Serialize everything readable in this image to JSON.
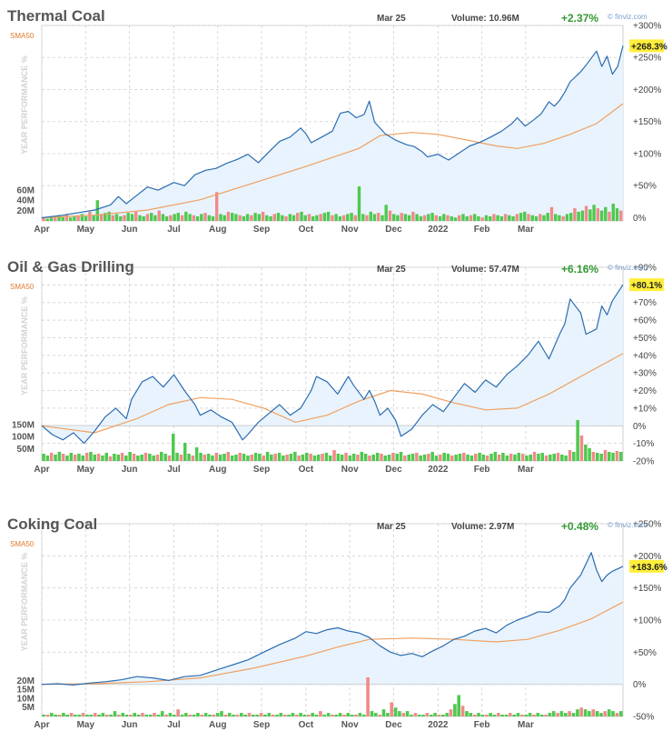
{
  "site": "finviz.com",
  "sma_label": "SMA50",
  "year_label": "YEAR PERFORMANCE %",
  "months": [
    "Apr",
    "May",
    "Jun",
    "Jul",
    "Aug",
    "Sep",
    "Oct",
    "Nov",
    "Dec",
    "2022",
    "Feb",
    "Mar"
  ],
  "colors": {
    "price_line": "#2b6cb0",
    "price_fill": "#e8f3fd",
    "sma_line": "#f0a060",
    "volume_up": "#4ec94e",
    "volume_down": "#f08a8a",
    "positive": "#339933",
    "badge": "#ffef3b",
    "title": "#555555"
  },
  "chart_data": [
    {
      "type": "line",
      "title": "Thermal Coal",
      "date": "Mar 25",
      "volume": "Volume: 10.96M",
      "change": "+2.37%",
      "current_label": "+268.3%",
      "current_value": 268.3,
      "ylim": [
        -5,
        300
      ],
      "yticks": [
        0,
        50,
        100,
        150,
        200,
        250,
        300
      ],
      "ytick_labels": [
        "0%",
        "+50%",
        "+100%",
        "+150%",
        "+200%",
        "+250%",
        "+300%"
      ],
      "zero_line": false,
      "vol_labels": [
        "20M",
        "40M",
        "60M"
      ],
      "x_positions": [
        0,
        0.083,
        0.166,
        0.25,
        0.333,
        0.416,
        0.5,
        0.583,
        0.666,
        0.75,
        0.833,
        0.916
      ],
      "price_points": [
        [
          0,
          0
        ],
        [
          0.04,
          4
        ],
        [
          0.07,
          8
        ],
        [
          0.1,
          12
        ],
        [
          0.13,
          20
        ],
        [
          0.145,
          33
        ],
        [
          0.16,
          22
        ],
        [
          0.18,
          35
        ],
        [
          0.2,
          48
        ],
        [
          0.22,
          43
        ],
        [
          0.25,
          55
        ],
        [
          0.27,
          50
        ],
        [
          0.29,
          67
        ],
        [
          0.31,
          74
        ],
        [
          0.33,
          77
        ],
        [
          0.35,
          85
        ],
        [
          0.37,
          91
        ],
        [
          0.39,
          99
        ],
        [
          0.41,
          86
        ],
        [
          0.43,
          103
        ],
        [
          0.45,
          119
        ],
        [
          0.47,
          126
        ],
        [
          0.49,
          140
        ],
        [
          0.5,
          131
        ],
        [
          0.51,
          117
        ],
        [
          0.53,
          126
        ],
        [
          0.55,
          135
        ],
        [
          0.565,
          163
        ],
        [
          0.58,
          166
        ],
        [
          0.595,
          156
        ],
        [
          0.61,
          161
        ],
        [
          0.62,
          182
        ],
        [
          0.63,
          149
        ],
        [
          0.65,
          131
        ],
        [
          0.67,
          121
        ],
        [
          0.69,
          114
        ],
        [
          0.705,
          111
        ],
        [
          0.72,
          103
        ],
        [
          0.73,
          95
        ],
        [
          0.75,
          99
        ],
        [
          0.77,
          90
        ],
        [
          0.79,
          101
        ],
        [
          0.81,
          112
        ],
        [
          0.83,
          118
        ],
        [
          0.85,
          126
        ],
        [
          0.87,
          135
        ],
        [
          0.89,
          147
        ],
        [
          0.9,
          156
        ],
        [
          0.915,
          143
        ],
        [
          0.93,
          152
        ],
        [
          0.945,
          162
        ],
        [
          0.96,
          181
        ],
        [
          0.97,
          174
        ],
        [
          0.98,
          183
        ],
        [
          0.99,
          196
        ],
        [
          1.0,
          212
        ],
        [
          1.02,
          228
        ],
        [
          1.03,
          238
        ],
        [
          1.05,
          260
        ],
        [
          1.06,
          236
        ],
        [
          1.07,
          252
        ],
        [
          1.08,
          224
        ],
        [
          1.09,
          236
        ],
        [
          1.1,
          268.3
        ]
      ],
      "sma_points": [
        [
          0,
          0
        ],
        [
          0.1,
          4
        ],
        [
          0.2,
          12
        ],
        [
          0.3,
          28
        ],
        [
          0.4,
          54
        ],
        [
          0.5,
          80
        ],
        [
          0.6,
          108
        ],
        [
          0.64,
          128
        ],
        [
          0.7,
          133
        ],
        [
          0.75,
          130
        ],
        [
          0.8,
          122
        ],
        [
          0.86,
          112
        ],
        [
          0.9,
          108
        ],
        [
          0.95,
          116
        ],
        [
          1.0,
          130
        ],
        [
          1.05,
          147
        ],
        [
          1.1,
          178
        ]
      ],
      "volume_series": [
        3,
        2,
        4,
        3,
        5,
        4,
        6,
        3,
        4,
        5,
        6,
        4,
        8,
        5,
        18,
        6,
        7,
        8,
        5,
        6,
        4,
        5,
        7,
        6,
        8,
        5,
        4,
        6,
        7,
        5,
        9,
        6,
        4,
        5,
        6,
        7,
        5,
        8,
        6,
        5,
        4,
        6,
        7,
        5,
        4,
        25,
        6,
        5,
        8,
        7,
        6,
        5,
        4,
        6,
        5,
        7,
        6,
        8,
        5,
        4,
        6,
        7,
        5,
        4,
        6,
        5,
        7,
        8,
        5,
        6,
        4,
        5,
        6,
        7,
        8,
        5,
        6,
        4,
        5,
        6,
        7,
        5,
        30,
        6,
        5,
        8,
        6,
        7,
        5,
        14,
        9,
        6,
        5,
        7,
        6,
        5,
        8,
        6,
        4,
        5,
        6,
        7,
        5,
        4,
        6,
        5,
        4,
        3,
        5,
        6,
        4,
        5,
        6,
        4,
        3,
        5,
        4,
        6,
        5,
        4,
        6,
        5,
        4,
        6,
        7,
        8,
        6,
        5,
        4,
        6,
        5,
        7,
        12,
        6,
        5,
        4,
        6,
        7,
        11,
        8,
        9,
        13,
        10,
        14,
        11,
        9,
        12,
        8,
        15,
        11,
        9
      ]
    },
    {
      "type": "line",
      "title": "Oil & Gas Drilling",
      "date": "Mar 25",
      "volume": "Volume: 57.47M",
      "change": "+6.16%",
      "current_label": "+80.1%",
      "current_value": 80.1,
      "ylim": [
        -20,
        90
      ],
      "yticks": [
        -20,
        -10,
        0,
        10,
        20,
        30,
        40,
        50,
        60,
        70,
        80,
        90
      ],
      "ytick_labels": [
        "-20%",
        "-10%",
        "0%",
        "+10%",
        "+20%",
        "+30%",
        "+40%",
        "+50%",
        "+60%",
        "+70%",
        "+80%",
        "+90%"
      ],
      "zero_line": true,
      "vol_labels": [
        "50M",
        "100M",
        "150M"
      ],
      "x_positions": [
        0,
        0.083,
        0.166,
        0.25,
        0.333,
        0.416,
        0.5,
        0.583,
        0.666,
        0.75,
        0.833,
        0.916
      ],
      "price_points": [
        [
          0,
          0
        ],
        [
          0.02,
          -5
        ],
        [
          0.04,
          -8
        ],
        [
          0.06,
          -4
        ],
        [
          0.08,
          -10
        ],
        [
          0.1,
          -3
        ],
        [
          0.12,
          5
        ],
        [
          0.14,
          10
        ],
        [
          0.16,
          4
        ],
        [
          0.17,
          15
        ],
        [
          0.19,
          25
        ],
        [
          0.21,
          28
        ],
        [
          0.23,
          22
        ],
        [
          0.25,
          29
        ],
        [
          0.27,
          20
        ],
        [
          0.29,
          12
        ],
        [
          0.3,
          6
        ],
        [
          0.32,
          9
        ],
        [
          0.34,
          5
        ],
        [
          0.36,
          2
        ],
        [
          0.38,
          -8
        ],
        [
          0.39,
          -5
        ],
        [
          0.41,
          2
        ],
        [
          0.43,
          7
        ],
        [
          0.45,
          12
        ],
        [
          0.47,
          6
        ],
        [
          0.49,
          10
        ],
        [
          0.51,
          20
        ],
        [
          0.52,
          28
        ],
        [
          0.54,
          25
        ],
        [
          0.56,
          18
        ],
        [
          0.58,
          28
        ],
        [
          0.59,
          23
        ],
        [
          0.61,
          15
        ],
        [
          0.62,
          20
        ],
        [
          0.63,
          14
        ],
        [
          0.64,
          6
        ],
        [
          0.655,
          10
        ],
        [
          0.67,
          3
        ],
        [
          0.68,
          -6
        ],
        [
          0.7,
          -2
        ],
        [
          0.72,
          6
        ],
        [
          0.74,
          12
        ],
        [
          0.76,
          8
        ],
        [
          0.78,
          16
        ],
        [
          0.8,
          24
        ],
        [
          0.82,
          19
        ],
        [
          0.84,
          26
        ],
        [
          0.86,
          22
        ],
        [
          0.88,
          29
        ],
        [
          0.9,
          34
        ],
        [
          0.92,
          40
        ],
        [
          0.94,
          48
        ],
        [
          0.95,
          43
        ],
        [
          0.96,
          38
        ],
        [
          0.98,
          52
        ],
        [
          0.99,
          58
        ],
        [
          1.0,
          72
        ],
        [
          1.02,
          64
        ],
        [
          1.03,
          52
        ],
        [
          1.05,
          55
        ],
        [
          1.06,
          68
        ],
        [
          1.07,
          63
        ],
        [
          1.08,
          71
        ],
        [
          1.1,
          80.1
        ]
      ],
      "sma_points": [
        [
          0,
          0
        ],
        [
          0.1,
          -4
        ],
        [
          0.18,
          4
        ],
        [
          0.24,
          12
        ],
        [
          0.3,
          16
        ],
        [
          0.36,
          15
        ],
        [
          0.42,
          10
        ],
        [
          0.48,
          2
        ],
        [
          0.54,
          6
        ],
        [
          0.6,
          14
        ],
        [
          0.66,
          20
        ],
        [
          0.72,
          18
        ],
        [
          0.78,
          13
        ],
        [
          0.84,
          9
        ],
        [
          0.9,
          10
        ],
        [
          0.96,
          18
        ],
        [
          1.02,
          28
        ],
        [
          1.1,
          41
        ]
      ],
      "volume_series": [
        8,
        6,
        9,
        7,
        10,
        8,
        6,
        9,
        7,
        8,
        6,
        9,
        10,
        7,
        8,
        6,
        9,
        5,
        8,
        7,
        9,
        6,
        10,
        8,
        6,
        7,
        9,
        8,
        6,
        7,
        10,
        8,
        6,
        30,
        9,
        7,
        20,
        8,
        6,
        15,
        9,
        7,
        8,
        6,
        9,
        7,
        8,
        10,
        6,
        7,
        9,
        8,
        6,
        7,
        9,
        8,
        6,
        10,
        7,
        8,
        9,
        6,
        7,
        8,
        10,
        6,
        7,
        9,
        8,
        6,
        7,
        8,
        9,
        6,
        12,
        8,
        7,
        9,
        6,
        8,
        7,
        10,
        8,
        6,
        7,
        9,
        8,
        6,
        7,
        9,
        8,
        10,
        6,
        7,
        8,
        9,
        6,
        7,
        8,
        10,
        6,
        7,
        9,
        8,
        6,
        7,
        8,
        9,
        7,
        6,
        8,
        9,
        7,
        6,
        8,
        10,
        7,
        9,
        6,
        8,
        7,
        9,
        8,
        6,
        7,
        10,
        8,
        9,
        6,
        7,
        8,
        9,
        7,
        6,
        12,
        10,
        45,
        28,
        18,
        14,
        10,
        9,
        8,
        12,
        10,
        9,
        11,
        10
      ]
    },
    {
      "type": "line",
      "title": "Coking Coal",
      "date": "Mar 25",
      "volume": "Volume: 2.97M",
      "change": "+0.48%",
      "current_label": "+183.6%",
      "current_value": 183.6,
      "ylim": [
        -50,
        250
      ],
      "yticks": [
        -50,
        0,
        50,
        100,
        150,
        200,
        250
      ],
      "ytick_labels": [
        "-50%",
        "0%",
        "+50%",
        "+100%",
        "+150%",
        "+200%",
        "+250%"
      ],
      "zero_line": true,
      "vol_labels": [
        "5M",
        "10M",
        "15M",
        "20M"
      ],
      "x_positions": [
        0,
        0.083,
        0.166,
        0.25,
        0.333,
        0.416,
        0.5,
        0.583,
        0.666,
        0.75,
        0.833,
        0.916
      ],
      "price_points": [
        [
          0,
          0
        ],
        [
          0.03,
          1
        ],
        [
          0.06,
          -1
        ],
        [
          0.09,
          2
        ],
        [
          0.12,
          4
        ],
        [
          0.15,
          7
        ],
        [
          0.18,
          12
        ],
        [
          0.21,
          10
        ],
        [
          0.24,
          6
        ],
        [
          0.27,
          12
        ],
        [
          0.3,
          14
        ],
        [
          0.33,
          22
        ],
        [
          0.36,
          30
        ],
        [
          0.39,
          38
        ],
        [
          0.42,
          50
        ],
        [
          0.45,
          62
        ],
        [
          0.48,
          72
        ],
        [
          0.5,
          82
        ],
        [
          0.52,
          79
        ],
        [
          0.54,
          85
        ],
        [
          0.56,
          88
        ],
        [
          0.58,
          83
        ],
        [
          0.6,
          80
        ],
        [
          0.62,
          73
        ],
        [
          0.64,
          60
        ],
        [
          0.66,
          50
        ],
        [
          0.68,
          45
        ],
        [
          0.7,
          48
        ],
        [
          0.72,
          43
        ],
        [
          0.74,
          52
        ],
        [
          0.76,
          60
        ],
        [
          0.78,
          70
        ],
        [
          0.8,
          75
        ],
        [
          0.82,
          83
        ],
        [
          0.84,
          87
        ],
        [
          0.86,
          80
        ],
        [
          0.88,
          92
        ],
        [
          0.9,
          100
        ],
        [
          0.92,
          106
        ],
        [
          0.94,
          113
        ],
        [
          0.96,
          112
        ],
        [
          0.98,
          122
        ],
        [
          0.99,
          132
        ],
        [
          1.0,
          150
        ],
        [
          1.02,
          170
        ],
        [
          1.04,
          205
        ],
        [
          1.05,
          178
        ],
        [
          1.06,
          160
        ],
        [
          1.07,
          170
        ],
        [
          1.08,
          176
        ],
        [
          1.1,
          183.6
        ]
      ],
      "sma_points": [
        [
          0,
          0
        ],
        [
          0.1,
          1
        ],
        [
          0.2,
          4
        ],
        [
          0.3,
          10
        ],
        [
          0.4,
          25
        ],
        [
          0.5,
          44
        ],
        [
          0.56,
          58
        ],
        [
          0.62,
          70
        ],
        [
          0.7,
          72
        ],
        [
          0.78,
          70
        ],
        [
          0.86,
          66
        ],
        [
          0.92,
          70
        ],
        [
          0.98,
          84
        ],
        [
          1.04,
          102
        ],
        [
          1.1,
          128
        ]
      ],
      "volume_series": [
        1,
        1,
        2,
        1,
        1,
        2,
        1,
        2,
        1,
        1,
        2,
        1,
        1,
        2,
        1,
        2,
        1,
        1,
        3,
        1,
        2,
        1,
        1,
        2,
        1,
        2,
        1,
        1,
        2,
        1,
        3,
        1,
        2,
        1,
        4,
        1,
        2,
        1,
        1,
        2,
        1,
        2,
        1,
        1,
        2,
        3,
        1,
        2,
        1,
        1,
        2,
        1,
        2,
        1,
        1,
        2,
        1,
        2,
        1,
        1,
        2,
        1,
        1,
        2,
        1,
        2,
        1,
        1,
        2,
        1,
        3,
        1,
        2,
        1,
        1,
        2,
        1,
        2,
        1,
        1,
        2,
        1,
        22,
        3,
        2,
        1,
        4,
        2,
        8,
        5,
        3,
        2,
        3,
        1,
        2,
        1,
        1,
        2,
        1,
        2,
        1,
        1,
        2,
        4,
        7,
        12,
        6,
        3,
        2,
        1,
        2,
        1,
        1,
        2,
        1,
        2,
        1,
        1,
        2,
        1,
        2,
        1,
        1,
        2,
        1,
        2,
        1,
        1,
        2,
        3,
        2,
        3,
        2,
        3,
        2,
        4,
        5,
        4,
        3,
        4,
        3,
        2,
        3,
        4,
        3,
        2,
        3
      ]
    }
  ]
}
